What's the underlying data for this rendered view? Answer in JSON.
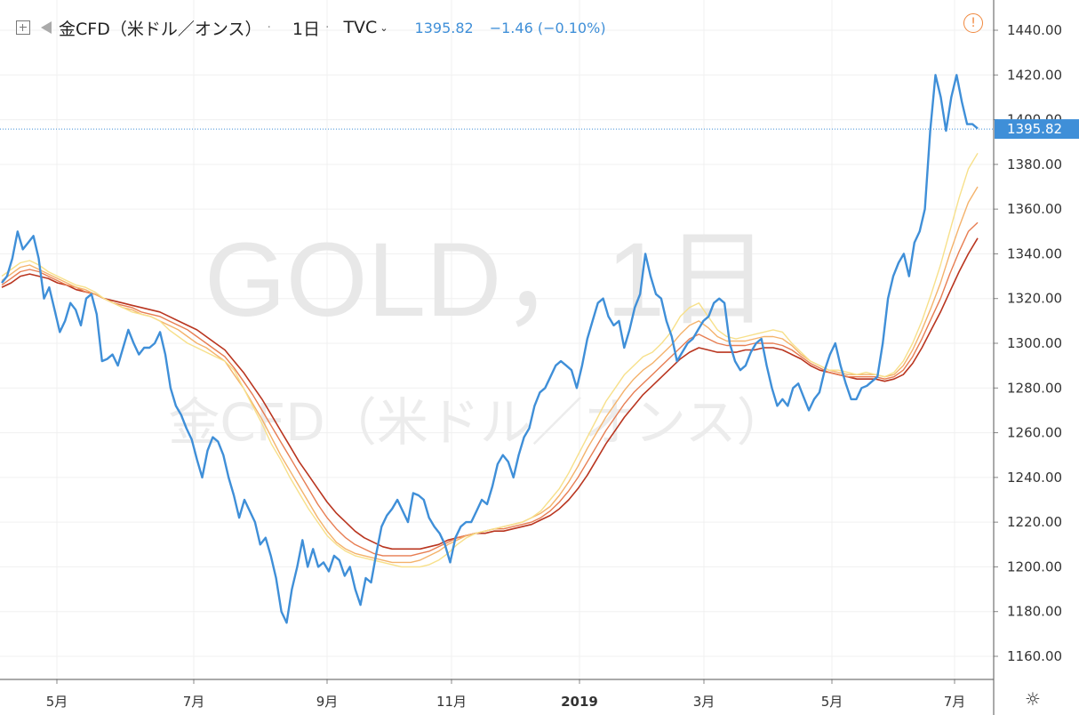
{
  "header": {
    "symbol": "金CFD（米ドル／オンス）",
    "interval": "1日",
    "exchange": "TVC",
    "price": "1395.82",
    "change": "−1.46 (−0.10%)"
  },
  "watermark": {
    "line1": "GOLD，1日",
    "line2": "金CFD（米ドル／オンス）"
  },
  "icons": [
    "expand-icon",
    "flag-icon",
    "chevron-down-icon",
    "warning-icon",
    "gear-icon"
  ],
  "colors": {
    "price_line": "#3f8fd8",
    "ma_light": "#f7e08a",
    "ma_dark": "#8b1a10",
    "grid": "#eeeeee",
    "last_price_label": "#3f8fd8"
  },
  "chart_data": {
    "type": "line",
    "title": "金CFD（米ドル／オンス）",
    "ylim": [
      1150,
      1445
    ],
    "y_ticks": [
      "1440.00",
      "1420.00",
      "1400.00",
      "1380.00",
      "1360.00",
      "1340.00",
      "1320.00",
      "1300.00",
      "1280.00",
      "1260.00",
      "1240.00",
      "1220.00",
      "1200.00",
      "1180.00",
      "1160.00"
    ],
    "x_ticks": [
      "5月",
      "7月",
      "9月",
      "11月",
      "2019",
      "3月",
      "5月",
      "7月"
    ],
    "last_price_label": "1395.82",
    "last_price": 1395.82,
    "series": [
      {
        "values": [
          1327,
          1330,
          1338,
          1350,
          1342,
          1345,
          1348,
          1338,
          1320,
          1325,
          1315,
          1305,
          1310,
          1318,
          1315,
          1308,
          1320,
          1322,
          1313,
          1292,
          1293,
          1295,
          1290,
          1298,
          1306,
          1300,
          1295,
          1298,
          1298,
          1300,
          1305,
          1295,
          1280,
          1272,
          1268,
          1262,
          1257,
          1248,
          1240,
          1252,
          1258,
          1256,
          1250,
          1240,
          1232,
          1222,
          1230,
          1225,
          1220,
          1210,
          1213,
          1205,
          1195,
          1180,
          1175,
          1190,
          1200,
          1212,
          1200,
          1208,
          1200,
          1202,
          1198,
          1205,
          1203,
          1196,
          1200,
          1190,
          1183,
          1195,
          1193,
          1206,
          1218,
          1223,
          1226,
          1230,
          1225,
          1220,
          1233,
          1232,
          1230,
          1222,
          1218,
          1215,
          1210,
          1202,
          1213,
          1218,
          1220,
          1220,
          1225,
          1230,
          1228,
          1236,
          1246,
          1250,
          1247,
          1240,
          1250,
          1258,
          1262,
          1272,
          1278,
          1280,
          1285,
          1290,
          1292,
          1290,
          1288,
          1280,
          1290,
          1302,
          1310,
          1318,
          1320,
          1312,
          1308,
          1310,
          1298,
          1306,
          1316,
          1322,
          1340,
          1330,
          1322,
          1320,
          1310,
          1303,
          1292,
          1296,
          1300,
          1302,
          1306,
          1310,
          1312,
          1318,
          1320,
          1318,
          1300,
          1292,
          1288,
          1290,
          1296,
          1300,
          1302,
          1290,
          1280,
          1272,
          1275,
          1272,
          1280,
          1282,
          1276,
          1270,
          1275,
          1278,
          1288,
          1295,
          1300,
          1290,
          1282,
          1275,
          1275,
          1280,
          1281,
          1283,
          1285,
          1300,
          1320,
          1330,
          1336,
          1340,
          1330,
          1345,
          1350,
          1360,
          1395,
          1420,
          1410,
          1395,
          1410,
          1420,
          1408,
          1398,
          1398,
          1396
        ]
      },
      {
        "values": [
          1330,
          1333,
          1336,
          1337,
          1335,
          1332,
          1330,
          1328,
          1326,
          1325,
          1323,
          1320,
          1318,
          1316,
          1314,
          1313,
          1312,
          1310,
          1306,
          1303,
          1300,
          1298,
          1296,
          1294,
          1292,
          1288,
          1280,
          1272,
          1264,
          1255,
          1248,
          1240,
          1233,
          1226,
          1220,
          1214,
          1210,
          1207,
          1205,
          1204,
          1203,
          1202,
          1201,
          1200,
          1200,
          1200,
          1201,
          1203,
          1206,
          1210,
          1213,
          1215,
          1216,
          1217,
          1218,
          1219,
          1220,
          1222,
          1225,
          1230,
          1235,
          1242,
          1250,
          1258,
          1266,
          1274,
          1280,
          1286,
          1290,
          1294,
          1296,
          1300,
          1305,
          1312,
          1316,
          1318,
          1312,
          1306,
          1303,
          1302,
          1303,
          1304,
          1305,
          1306,
          1305,
          1300,
          1296,
          1292,
          1290,
          1288,
          1288,
          1287,
          1286,
          1287,
          1286,
          1285,
          1287,
          1292,
          1300,
          1310,
          1322,
          1335,
          1350,
          1365,
          1378,
          1385
        ]
      },
      {
        "values": [
          1328,
          1331,
          1334,
          1335,
          1333,
          1331,
          1329,
          1327,
          1325,
          1324,
          1322,
          1320,
          1318,
          1316,
          1315,
          1313,
          1312,
          1310,
          1308,
          1306,
          1303,
          1300,
          1298,
          1295,
          1292,
          1286,
          1280,
          1273,
          1266,
          1258,
          1250,
          1243,
          1236,
          1229,
          1222,
          1216,
          1211,
          1208,
          1206,
          1205,
          1204,
          1203,
          1202,
          1202,
          1202,
          1203,
          1205,
          1207,
          1210,
          1212,
          1214,
          1215,
          1216,
          1217,
          1218,
          1219,
          1220,
          1222,
          1224,
          1227,
          1232,
          1238,
          1245,
          1253,
          1260,
          1267,
          1273,
          1279,
          1284,
          1288,
          1291,
          1295,
          1299,
          1304,
          1308,
          1310,
          1307,
          1303,
          1301,
          1301,
          1301,
          1302,
          1303,
          1303,
          1302,
          1299,
          1295,
          1292,
          1290,
          1288,
          1287,
          1286,
          1286,
          1286,
          1286,
          1285,
          1286,
          1290,
          1297,
          1306,
          1316,
          1327,
          1340,
          1352,
          1363,
          1370
        ]
      },
      {
        "values": [
          1326,
          1329,
          1332,
          1333,
          1332,
          1330,
          1328,
          1326,
          1325,
          1323,
          1322,
          1320,
          1318,
          1317,
          1316,
          1314,
          1313,
          1312,
          1310,
          1308,
          1306,
          1303,
          1300,
          1297,
          1294,
          1289,
          1283,
          1277,
          1270,
          1263,
          1256,
          1249,
          1242,
          1235,
          1228,
          1222,
          1217,
          1213,
          1210,
          1208,
          1206,
          1205,
          1205,
          1205,
          1205,
          1206,
          1207,
          1209,
          1211,
          1213,
          1214,
          1215,
          1216,
          1217,
          1217,
          1218,
          1219,
          1220,
          1222,
          1225,
          1229,
          1234,
          1240,
          1247,
          1254,
          1261,
          1267,
          1273,
          1278,
          1282,
          1286,
          1290,
          1294,
          1298,
          1302,
          1304,
          1302,
          1300,
          1299,
          1299,
          1299,
          1300,
          1300,
          1300,
          1299,
          1297,
          1294,
          1291,
          1289,
          1287,
          1286,
          1285,
          1285,
          1285,
          1285,
          1284,
          1285,
          1288,
          1294,
          1302,
          1311,
          1320,
          1331,
          1341,
          1350,
          1354
        ]
      },
      {
        "values": [
          1325,
          1327,
          1330,
          1331,
          1330,
          1329,
          1327,
          1326,
          1324,
          1323,
          1322,
          1320,
          1319,
          1318,
          1317,
          1316,
          1315,
          1314,
          1312,
          1310,
          1308,
          1306,
          1303,
          1300,
          1297,
          1292,
          1287,
          1281,
          1275,
          1268,
          1261,
          1254,
          1247,
          1241,
          1235,
          1229,
          1224,
          1220,
          1216,
          1213,
          1211,
          1209,
          1208,
          1208,
          1208,
          1208,
          1209,
          1210,
          1212,
          1213,
          1214,
          1215,
          1215,
          1216,
          1216,
          1217,
          1218,
          1219,
          1221,
          1223,
          1226,
          1230,
          1235,
          1241,
          1248,
          1255,
          1261,
          1267,
          1272,
          1277,
          1281,
          1285,
          1289,
          1293,
          1296,
          1298,
          1297,
          1296,
          1296,
          1296,
          1297,
          1297,
          1298,
          1298,
          1297,
          1295,
          1293,
          1290,
          1288,
          1287,
          1286,
          1285,
          1284,
          1284,
          1284,
          1283,
          1284,
          1286,
          1291,
          1298,
          1306,
          1314,
          1323,
          1332,
          1340,
          1347
        ]
      }
    ]
  }
}
